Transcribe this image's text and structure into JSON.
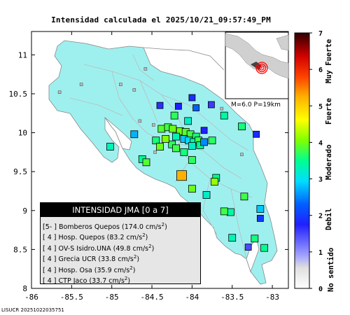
{
  "title": "Intensidad calculada el 2025/10/21_09:57:49_PM",
  "footer_id": "LISUCR 20251022035751",
  "inset_label": "M=6.0 P=19km",
  "legend": {
    "header": "INTENSIDAD JMA [0 a 7]",
    "rows": [
      {
        "intensity": "[5- ]",
        "station": "Bomberos Quepos",
        "pga": "(174.0 cm/s",
        "unit_exp": "2",
        "close": ")"
      },
      {
        "intensity": "[ 4 ]",
        "station": "Hosp. Quepos",
        "pga": "(83.2 cm/s",
        "unit_exp": "2",
        "close": ")"
      },
      {
        "intensity": "[ 4 ]",
        "station": "OV-S Isidro.UNA",
        "pga": "(49.8 cm/s",
        "unit_exp": "2",
        "close": ")"
      },
      {
        "intensity": "[ 4 ]",
        "station": "Grecia UCR",
        "pga": "(33.8 cm/s",
        "unit_exp": "2",
        "close": ")"
      },
      {
        "intensity": "[ 4 ]",
        "station": "Hosp. Osa",
        "pga": "(35.9 cm/s",
        "unit_exp": "2",
        "close": ")"
      },
      {
        "intensity": "[ 4 ]",
        "station": "CTP Jaco",
        "pga": "(33.7 cm/s",
        "unit_exp": "2",
        "close": ")"
      }
    ]
  },
  "axes": {
    "x_ticks": [
      "-86",
      "-85.5",
      "-85",
      "-84.5",
      "-84",
      "-83.5",
      "-83"
    ],
    "x_values": [
      -86,
      -85.5,
      -85,
      -84.5,
      -84,
      -83.5,
      -83
    ],
    "y_ticks": [
      "8",
      "8.5",
      "9",
      "9.5",
      "10",
      "10.5",
      "11"
    ],
    "y_values": [
      8,
      8.5,
      9,
      9.5,
      10,
      10.5,
      11
    ],
    "x_range": [
      -86,
      -82.8
    ],
    "y_range": [
      8,
      11.3
    ]
  },
  "colorbar": {
    "ticks": [
      "0",
      "1",
      "2",
      "3",
      "4",
      "5",
      "6",
      "7"
    ],
    "labels": [
      "No sentido",
      "Debil",
      "Moderado",
      "Fuerte",
      "Muy Fuerte"
    ],
    "colors": [
      "#f0f0f0",
      "#a0a0ff",
      "#0000ff",
      "#00c8ff",
      "#00ff80",
      "#c8ff00",
      "#ffff00",
      "#ffa000",
      "#ff0000",
      "#c00000",
      "#400000"
    ]
  },
  "colors": {
    "land": "#9ef0ef",
    "inset_land": "#d0d0d0",
    "epicenter": "#ff0000"
  },
  "stations": [
    {
      "lon": -84.13,
      "lat": 9.45,
      "intensity": 5.3
    },
    {
      "lon": -84.17,
      "lat": 10.34,
      "intensity": 1.8
    },
    {
      "lon": -84.0,
      "lat": 10.45,
      "intensity": 1.9
    },
    {
      "lon": -84.4,
      "lat": 10.35,
      "intensity": 1.7
    },
    {
      "lon": -83.95,
      "lat": 10.32,
      "intensity": 2.3
    },
    {
      "lon": -83.76,
      "lat": 10.36,
      "intensity": 1.6
    },
    {
      "lon": -84.22,
      "lat": 10.22,
      "intensity": 3.7
    },
    {
      "lon": -84.05,
      "lat": 10.15,
      "intensity": 3.2
    },
    {
      "lon": -84.38,
      "lat": 10.05,
      "intensity": 3.9
    },
    {
      "lon": -84.3,
      "lat": 10.07,
      "intensity": 3.8
    },
    {
      "lon": -84.24,
      "lat": 10.05,
      "intensity": 4.0
    },
    {
      "lon": -84.15,
      "lat": 10.02,
      "intensity": 4.0
    },
    {
      "lon": -84.08,
      "lat": 10.01,
      "intensity": 3.9
    },
    {
      "lon": -84.02,
      "lat": 9.98,
      "intensity": 3.8
    },
    {
      "lon": -83.95,
      "lat": 9.95,
      "intensity": 3.6
    },
    {
      "lon": -84.2,
      "lat": 9.95,
      "intensity": 3.3
    },
    {
      "lon": -84.1,
      "lat": 9.92,
      "intensity": 2.8
    },
    {
      "lon": -84.04,
      "lat": 9.9,
      "intensity": 2.9
    },
    {
      "lon": -83.98,
      "lat": 9.88,
      "intensity": 3.4
    },
    {
      "lon": -83.92,
      "lat": 9.9,
      "intensity": 3.8
    },
    {
      "lon": -84.25,
      "lat": 9.85,
      "intensity": 3.7
    },
    {
      "lon": -84.45,
      "lat": 9.9,
      "intensity": 3.6
    },
    {
      "lon": -84.33,
      "lat": 9.92,
      "intensity": 4.1
    },
    {
      "lon": -84.0,
      "lat": 9.83,
      "intensity": 3.2
    },
    {
      "lon": -83.9,
      "lat": 9.84,
      "intensity": 3.5
    },
    {
      "lon": -84.2,
      "lat": 9.8,
      "intensity": 3.8
    },
    {
      "lon": -84.1,
      "lat": 9.75,
      "intensity": 3.6
    },
    {
      "lon": -84.4,
      "lat": 9.82,
      "intensity": 4.0
    },
    {
      "lon": -84.0,
      "lat": 9.65,
      "intensity": 3.7
    },
    {
      "lon": -83.75,
      "lat": 9.9,
      "intensity": 3.7
    },
    {
      "lon": -83.6,
      "lat": 10.22,
      "intensity": 3.4
    },
    {
      "lon": -83.38,
      "lat": 10.08,
      "intensity": 3.6
    },
    {
      "lon": -83.2,
      "lat": 9.98,
      "intensity": 1.9
    },
    {
      "lon": -84.72,
      "lat": 9.98,
      "intensity": 2.7
    },
    {
      "lon": -84.62,
      "lat": 9.66,
      "intensity": 3.5
    },
    {
      "lon": -84.57,
      "lat": 9.62,
      "intensity": 3.9
    },
    {
      "lon": -85.02,
      "lat": 9.82,
      "intensity": 3.3
    },
    {
      "lon": -83.7,
      "lat": 9.42,
      "intensity": 3.5
    },
    {
      "lon": -83.72,
      "lat": 9.37,
      "intensity": 4.2
    },
    {
      "lon": -84.0,
      "lat": 9.28,
      "intensity": 4.0
    },
    {
      "lon": -83.82,
      "lat": 9.2,
      "intensity": 3.2
    },
    {
      "lon": -83.35,
      "lat": 9.18,
      "intensity": 3.8
    },
    {
      "lon": -83.52,
      "lat": 8.98,
      "intensity": 3.4
    },
    {
      "lon": -83.6,
      "lat": 8.99,
      "intensity": 3.8
    },
    {
      "lon": -83.15,
      "lat": 9.02,
      "intensity": 2.8
    },
    {
      "lon": -83.15,
      "lat": 8.9,
      "intensity": 2.0
    },
    {
      "lon": -83.5,
      "lat": 8.65,
      "intensity": 3.3
    },
    {
      "lon": -83.22,
      "lat": 8.64,
      "intensity": 3.6
    },
    {
      "lon": -83.1,
      "lat": 8.52,
      "intensity": 3.5
    },
    {
      "lon": -83.3,
      "lat": 8.53,
      "intensity": 1.5
    },
    {
      "lon": -83.85,
      "lat": 10.03,
      "intensity": 1.8
    },
    {
      "lon": -83.85,
      "lat": 9.88,
      "intensity": 2.5
    }
  ],
  "map_points": [
    {
      "lon": -84.89,
      "lat": 10.62
    },
    {
      "lon": -84.58,
      "lat": 10.82
    },
    {
      "lon": -84.72,
      "lat": 10.55
    },
    {
      "lon": -83.63,
      "lat": 10.31
    },
    {
      "lon": -84.48,
      "lat": 10.1
    },
    {
      "lon": -84.65,
      "lat": 10.15
    },
    {
      "lon": -85.38,
      "lat": 10.62
    },
    {
      "lon": -85.65,
      "lat": 10.52
    },
    {
      "lon": -84.46,
      "lat": 9.75
    },
    {
      "lon": -83.38,
      "lat": 9.72
    }
  ]
}
